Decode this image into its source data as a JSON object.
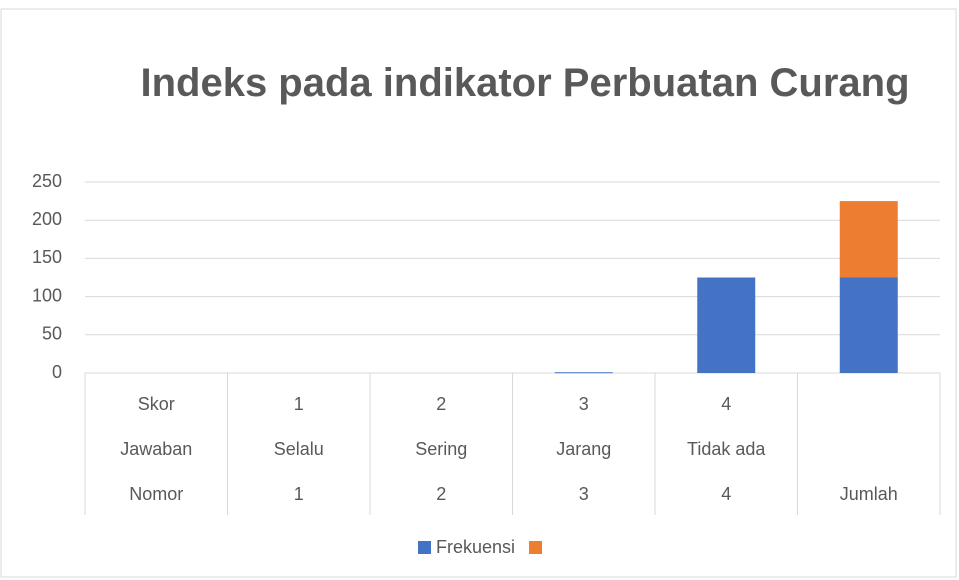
{
  "chart_data": {
    "type": "stacked_bar",
    "title": "Indeks pada indikator Perbuatan Curang",
    "categories": [
      [
        "Skor",
        "Jawaban",
        "Nomor"
      ],
      [
        "1",
        "Selalu",
        "1"
      ],
      [
        "2",
        "Sering",
        "2"
      ],
      [
        "3",
        "Jarang",
        "3"
      ],
      [
        "4",
        "Tidak ada",
        "4"
      ],
      [
        null,
        null,
        "Jumlah"
      ]
    ],
    "series": [
      {
        "name": "Frekuensi",
        "color": "#4472c4",
        "values": [
          0,
          0,
          0,
          1,
          125,
          125
        ]
      },
      {
        "color": "#ed7d31",
        "values": [
          0,
          0,
          0,
          0,
          0,
          100
        ]
      }
    ],
    "ylim": [
      0,
      250
    ],
    "yticks": [
      0,
      50,
      100,
      150,
      200,
      250
    ],
    "grid": true,
    "legend": "bottom"
  }
}
